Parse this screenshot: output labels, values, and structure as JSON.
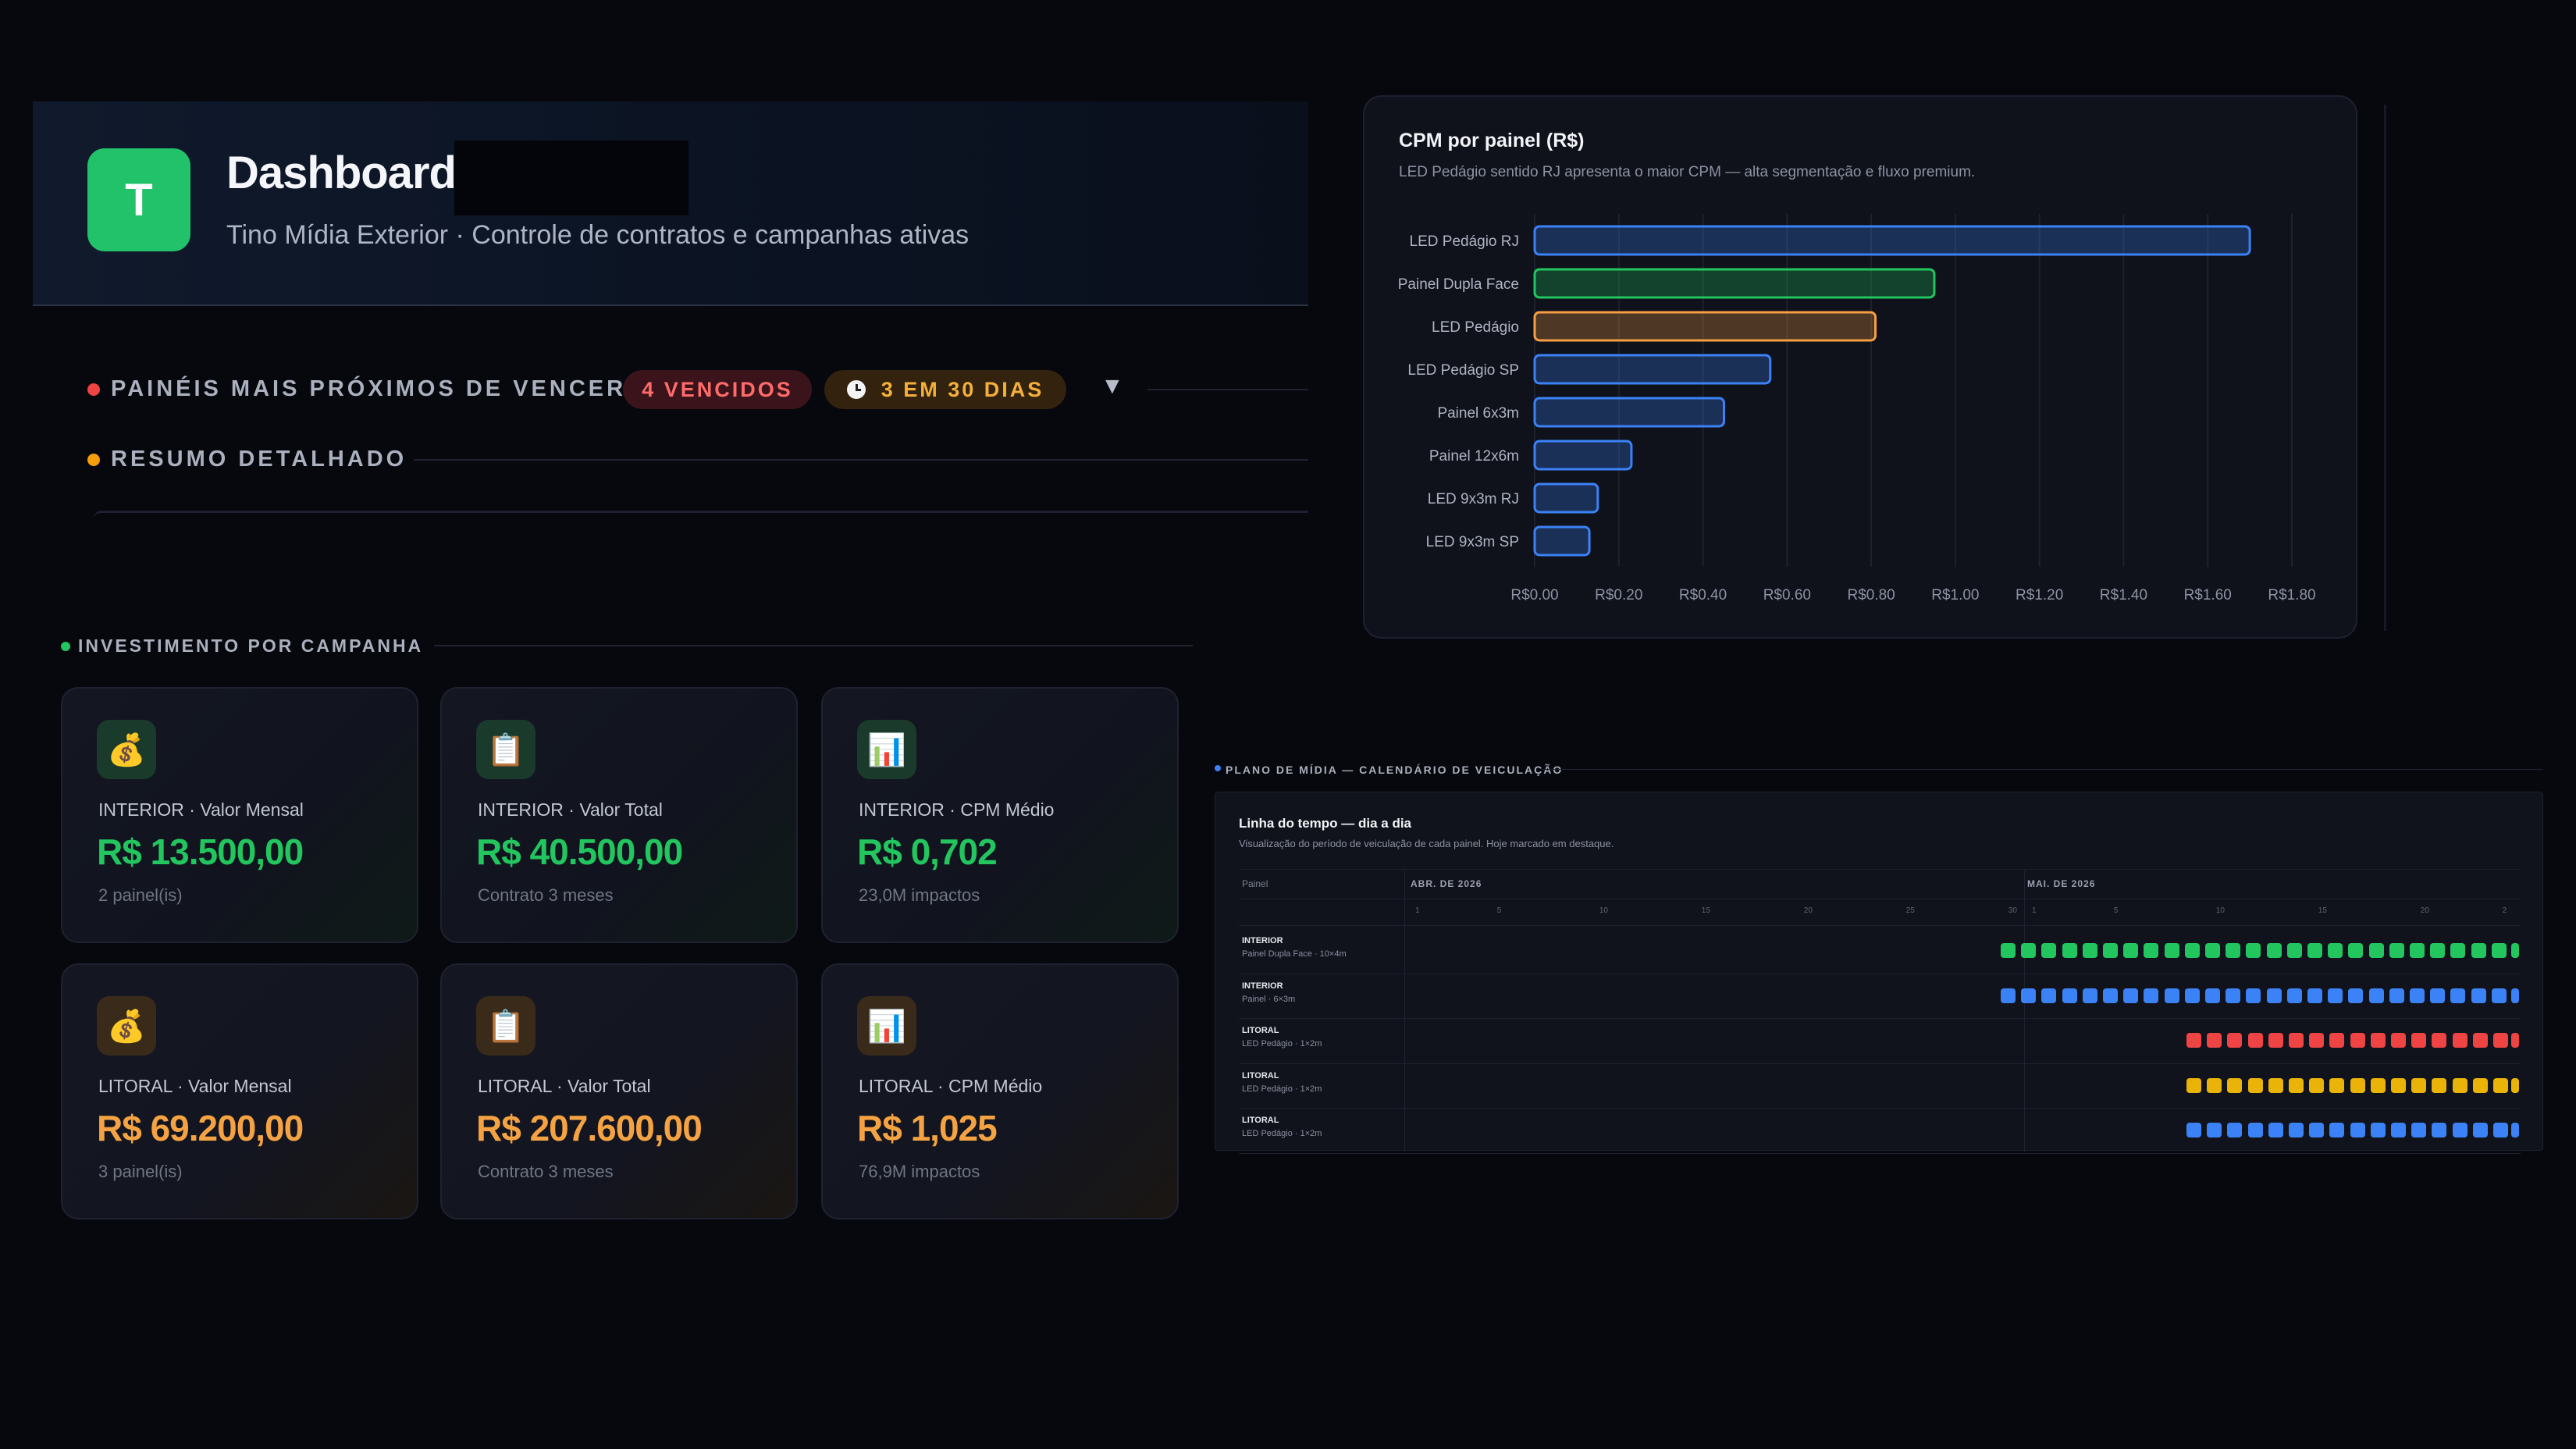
{
  "header": {
    "logo_letter": "T",
    "title": "Dashboard",
    "subtitle": "Tino Mídia Exterior · Controle de contratos e campanhas ativas"
  },
  "alerts": {
    "expiring_label": "PAINÉIS MAIS PRÓXIMOS DE VENCER",
    "overdue_badge": "4 VENCIDOS",
    "soon_badge": "3 EM 30 DIAS",
    "toggle_icon": "chevron-down-icon",
    "summary_label": "RESUMO DETALHADO"
  },
  "chart": {
    "title": "CPM por painel (R$)",
    "subtitle": "LED Pedágio sentido RJ apresenta o maior CPM — alta segmentação e fluxo premium."
  },
  "chart_data": {
    "type": "bar",
    "orientation": "horizontal",
    "categories": [
      "LED Pedágio RJ",
      "Painel Dupla Face",
      "LED Pedágio",
      "LED Pedágio SP",
      "Painel 6x3m",
      "Painel 12x6m",
      "LED 9x3m RJ",
      "LED 9x3m SP"
    ],
    "values": [
      1.7,
      0.95,
      0.81,
      0.56,
      0.45,
      0.23,
      0.15,
      0.13
    ],
    "colors": [
      "#3b82f6",
      "#22c55e",
      "#f59e42",
      "#3b82f6",
      "#3b82f6",
      "#3b82f6",
      "#3b82f6",
      "#3b82f6"
    ],
    "xlim": [
      0,
      1.8
    ],
    "xticks": [
      "R$0.00",
      "R$0.20",
      "R$0.40",
      "R$0.60",
      "R$0.80",
      "R$1.00",
      "R$1.20",
      "R$1.40",
      "R$1.60",
      "R$1.80"
    ],
    "grid": true,
    "title": "CPM por painel (R$)",
    "xlabel": "",
    "ylabel": ""
  },
  "investment": {
    "section_label": "INVESTIMENTO POR CAMPANHA",
    "cards": [
      {
        "icon": "money-bag-icon",
        "glyph": "💰",
        "label": "INTERIOR · Valor Mensal",
        "value": "R$ 13.500,00",
        "note": "2 painel(is)",
        "accent": "#22c55e"
      },
      {
        "icon": "clipboard-icon",
        "glyph": "📋",
        "label": "INTERIOR · Valor Total",
        "value": "R$ 40.500,00",
        "note": "Contrato 3 meses",
        "accent": "#22c55e"
      },
      {
        "icon": "bar-chart-icon",
        "glyph": "📊",
        "label": "INTERIOR · CPM Médio",
        "value": "R$ 0,702",
        "note": "23,0M impactos",
        "accent": "#22c55e"
      },
      {
        "icon": "money-bag-icon",
        "glyph": "💰",
        "label": "LITORAL · Valor Mensal",
        "value": "R$ 69.200,00",
        "note": "3 painel(is)",
        "accent": "#f5a342"
      },
      {
        "icon": "clipboard-icon",
        "glyph": "📋",
        "label": "LITORAL · Valor Total",
        "value": "R$ 207.600,00",
        "note": "Contrato 3 meses",
        "accent": "#f5a342"
      },
      {
        "icon": "bar-chart-icon",
        "glyph": "📊",
        "label": "LITORAL · CPM Médio",
        "value": "R$ 1,025",
        "note": "76,9M impactos",
        "accent": "#f5a342"
      }
    ]
  },
  "timeline": {
    "section_label": "PLANO DE MÍDIA — CALENDÁRIO DE VEICULAÇÃO",
    "title": "Linha do tempo — dia a dia",
    "subtitle": "Visualização do período de veiculação de cada painel. Hoje marcado em destaque.",
    "panel_header": "Painel",
    "months": [
      "ABR. DE 2026",
      "MAI. DE 2026"
    ],
    "days_apr": [
      "1",
      "5",
      "10",
      "15",
      "20",
      "25",
      "30"
    ],
    "days_may": [
      "1",
      "5",
      "10",
      "15",
      "20",
      "2"
    ],
    "rows": [
      {
        "region": "INTERIOR",
        "panel": "Painel Dupla Face · 10×4m",
        "color": "#22c55e",
        "start_day": 30,
        "count": 26
      },
      {
        "region": "INTERIOR",
        "panel": "Painel · 6×3m",
        "color": "#3b82f6",
        "start_day": 30,
        "count": 26
      },
      {
        "region": "LITORAL",
        "panel": "LED Pedágio · 1×2m",
        "color": "#ef4444",
        "start_day": 39,
        "count": 17
      },
      {
        "region": "LITORAL",
        "panel": "LED Pedágio · 1×2m",
        "color": "#eab308",
        "start_day": 39,
        "count": 17
      },
      {
        "region": "LITORAL",
        "panel": "LED Pedágio · 1×2m",
        "color": "#3b82f6",
        "start_day": 39,
        "count": 17
      }
    ]
  }
}
